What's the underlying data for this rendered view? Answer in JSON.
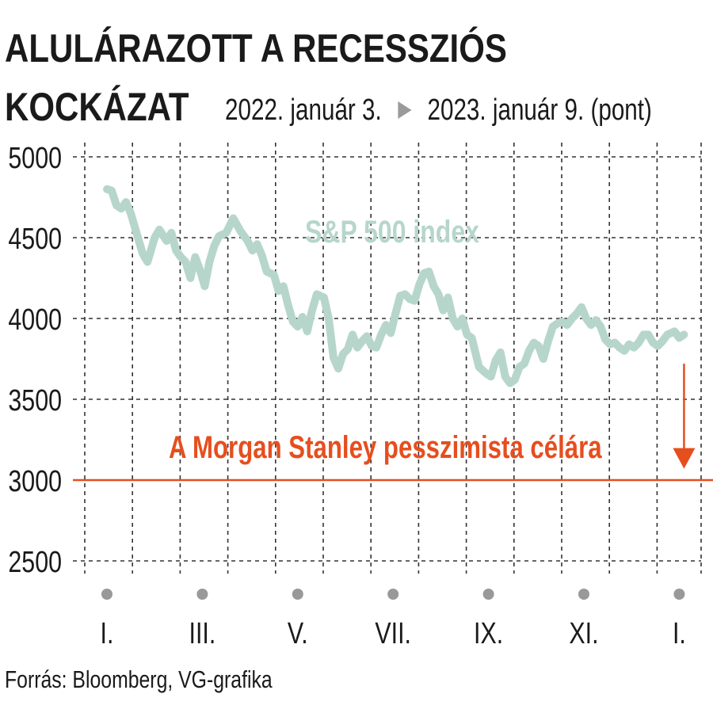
{
  "title_line1": "ALULÁRAZOTT A RECESSZIÓS",
  "title_line2": "KOCKÁZAT",
  "subtitle": {
    "start": "2022. január 3.",
    "end": "2023. január 9. (pont)"
  },
  "source": "Forrás: Bloomberg, VG-grafika",
  "colors": {
    "series": "#b7d6cb",
    "target": "#e64e1e",
    "grid": "#333333",
    "month_dot": "#999999",
    "text": "#1a1a1a"
  },
  "chart_data": {
    "type": "line",
    "title": "ALULÁRAZOTT A RECESSZIÓS KOCKÁZAT",
    "ylim": [
      2500,
      5000
    ],
    "y_ticks": [
      5000,
      4500,
      4000,
      3500,
      3000,
      2500
    ],
    "x_tick_labels": [
      "I.",
      "III.",
      "V.",
      "VII.",
      "IX.",
      "XI.",
      "I."
    ],
    "x_tick_months": [
      0,
      2,
      4,
      6,
      8,
      10,
      12
    ],
    "grid": true,
    "series": [
      {
        "name": "S&P 500 index",
        "x_months": [
          0.0,
          0.1,
          0.2,
          0.3,
          0.4,
          0.5,
          0.6,
          0.75,
          0.85,
          1.0,
          1.1,
          1.25,
          1.35,
          1.45,
          1.55,
          1.65,
          1.75,
          1.85,
          1.95,
          2.05,
          2.15,
          2.25,
          2.35,
          2.5,
          2.65,
          2.8,
          2.95,
          3.05,
          3.15,
          3.25,
          3.35,
          3.5,
          3.6,
          3.7,
          3.8,
          3.9,
          4.0,
          4.1,
          4.2,
          4.3,
          4.4,
          4.55,
          4.65,
          4.75,
          4.85,
          4.95,
          5.05,
          5.15,
          5.25,
          5.35,
          5.45,
          5.55,
          5.65,
          5.75,
          5.85,
          5.95,
          6.05,
          6.15,
          6.25,
          6.35,
          6.45,
          6.55,
          6.65,
          6.75,
          6.85,
          6.95,
          7.05,
          7.15,
          7.25,
          7.35,
          7.45,
          7.55,
          7.65,
          7.8,
          7.95,
          8.05,
          8.15,
          8.25,
          8.35,
          8.45,
          8.55,
          8.65,
          8.75,
          8.85,
          8.95,
          9.05,
          9.15,
          9.25,
          9.35,
          9.45,
          9.55,
          9.65,
          9.75,
          9.85,
          9.95,
          10.05,
          10.15,
          10.25,
          10.35,
          10.45,
          10.55,
          10.65,
          10.75,
          10.85,
          10.95,
          11.05,
          11.15,
          11.25,
          11.35,
          11.45,
          11.55,
          11.65,
          11.75,
          11.9,
          12.0,
          12.1
        ],
        "values": [
          4800,
          4790,
          4700,
          4680,
          4720,
          4650,
          4550,
          4400,
          4350,
          4500,
          4550,
          4480,
          4530,
          4420,
          4380,
          4350,
          4250,
          4380,
          4300,
          4200,
          4350,
          4450,
          4510,
          4530,
          4620,
          4540,
          4480,
          4420,
          4460,
          4390,
          4290,
          4270,
          4170,
          4200,
          4080,
          3980,
          3950,
          4010,
          3920,
          4050,
          4150,
          4130,
          4000,
          3760,
          3690,
          3780,
          3810,
          3900,
          3820,
          3860,
          3890,
          3830,
          3820,
          3900,
          3960,
          3910,
          4030,
          4140,
          4150,
          4120,
          4110,
          4210,
          4280,
          4290,
          4200,
          4150,
          4050,
          4130,
          4000,
          3950,
          4000,
          3900,
          3880,
          3700,
          3660,
          3640,
          3740,
          3790,
          3640,
          3600,
          3620,
          3700,
          3720,
          3800,
          3850,
          3830,
          3750,
          3860,
          3950,
          3970,
          3980,
          3960,
          4000,
          4030,
          4070,
          4000,
          3960,
          3990,
          3950,
          3870,
          3840,
          3850,
          3820,
          3800,
          3840,
          3820,
          3850,
          3900,
          3900,
          3850,
          3830,
          3860,
          3900,
          3920,
          3880,
          3900
        ]
      }
    ],
    "annotations": [
      {
        "type": "hline",
        "y": 3000,
        "label": "A Morgan Stanley pesszimista célára"
      },
      {
        "type": "arrow",
        "x_months": 12.1,
        "from_y": 3720,
        "to_y": 3080
      }
    ]
  }
}
